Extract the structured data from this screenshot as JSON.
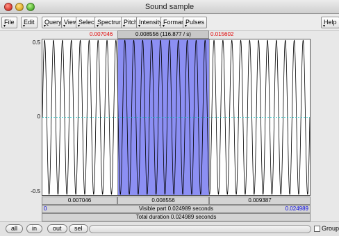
{
  "window": {
    "title": "Sound sample"
  },
  "menus": [
    "File",
    "Edit",
    "Query",
    "View",
    "Select",
    "Spectrum",
    "Pitch",
    "Intensity",
    "Formant",
    "Pulses",
    "Help"
  ],
  "top_bar": {
    "left_time": "0.007046",
    "selection": "0.008556 (116.877 / s)",
    "right_time": "0.015602"
  },
  "y_axis": {
    "top": "0.5",
    "mid": "0",
    "bottom": "-0.5"
  },
  "bottom_bar": {
    "left": "0.007046",
    "mid": "0.008556",
    "right": "0.009387"
  },
  "visible_bar": {
    "start": "0",
    "label": "Visible part 0.024989 seconds",
    "end": "0.024989"
  },
  "total_bar": {
    "label": "Total duration 0.024989 seconds"
  },
  "footer": {
    "all": "all",
    "in": "in",
    "out": "out",
    "sel": "sel",
    "group": "Group"
  },
  "colors": {
    "selection": "#8c8ff3",
    "waveform": "#000000",
    "zero_line": "#00c0c0",
    "red_text": "#e00000",
    "blue_text": "#0000e0"
  },
  "signal": {
    "cycles_visible": 30,
    "selection_start_frac": 0.282,
    "selection_end_frac": 0.624
  }
}
